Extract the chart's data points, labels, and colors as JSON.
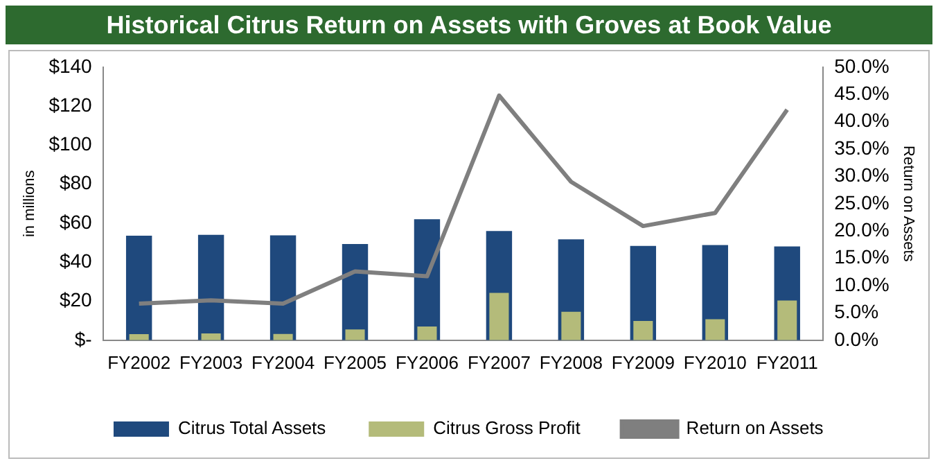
{
  "chart_data": {
    "type": "bar",
    "title": "Historical Citrus Return on Assets with Groves at Book Value",
    "ylabel": "in millions",
    "y2label": "Return on Assets",
    "categories": [
      "FY2002",
      "FY2003",
      "FY2004",
      "FY2005",
      "FY2006",
      "FY2007",
      "FY2008",
      "FY2009",
      "FY2010",
      "FY2011"
    ],
    "series": [
      {
        "name": "Citrus Total Assets",
        "color": "#1f497d",
        "values": [
          53.6,
          54,
          53.8,
          49.3,
          62,
          56,
          51.7,
          48.3,
          48.8,
          48.1
        ]
      },
      {
        "name": "Citrus Gross Profit",
        "color": "#b4bb7a",
        "values": [
          3.1,
          3.5,
          3.2,
          5.5,
          7,
          24.3,
          14.6,
          9.9,
          10.8,
          20.4
        ]
      },
      {
        "name": "Return on Assets",
        "type": "line",
        "axis": "y2",
        "color": "#7f7f7f",
        "values": [
          6.7,
          7.3,
          6.7,
          12.6,
          11.7,
          44.8,
          29,
          20.9,
          23.3,
          42.2
        ]
      }
    ],
    "ylim": [
      0,
      140
    ],
    "yticks": [
      {
        "value": 0,
        "label": "$-"
      },
      {
        "value": 20,
        "label": "$20"
      },
      {
        "value": 40,
        "label": "$40"
      },
      {
        "value": 60,
        "label": "$60"
      },
      {
        "value": 80,
        "label": "$80"
      },
      {
        "value": 100,
        "label": "$100"
      },
      {
        "value": 120,
        "label": "$120"
      },
      {
        "value": 140,
        "label": "$140"
      }
    ],
    "y2lim": [
      0,
      50
    ],
    "y2ticks": [
      {
        "value": 0,
        "label": "0.0%"
      },
      {
        "value": 5,
        "label": "5.0%"
      },
      {
        "value": 10,
        "label": "10.0%"
      },
      {
        "value": 15,
        "label": "15.0%"
      },
      {
        "value": 20,
        "label": "20.0%"
      },
      {
        "value": 25,
        "label": "25.0%"
      },
      {
        "value": 30,
        "label": "30.0%"
      },
      {
        "value": 35,
        "label": "35.0%"
      },
      {
        "value": 40,
        "label": "40.0%"
      },
      {
        "value": 45,
        "label": "45.0%"
      },
      {
        "value": 50,
        "label": "50.0%"
      }
    ],
    "grid": false,
    "legend": "bottom",
    "marker": "none"
  }
}
